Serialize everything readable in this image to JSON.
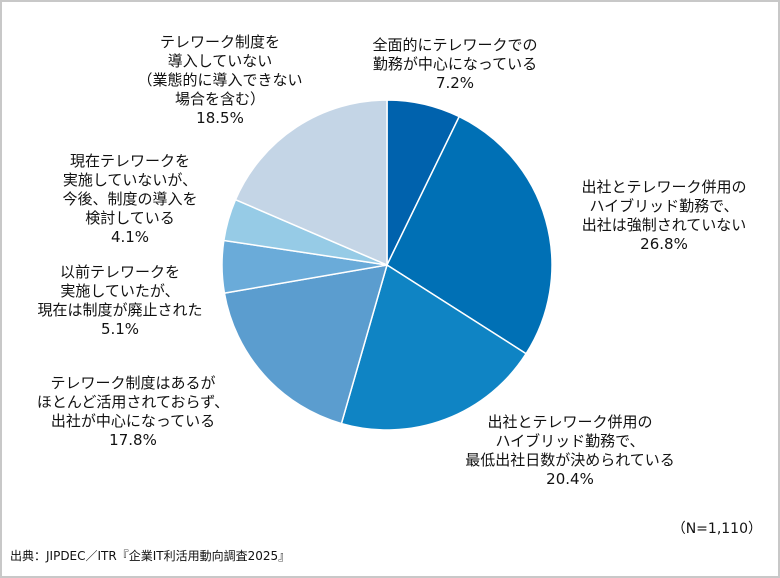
{
  "chart_data": {
    "type": "pie",
    "n_label": "（N=1,110）",
    "source": "出典：JIPDEC／ITR『企業IT利活用動向調査2025』",
    "slices": [
      {
        "label": "全面的にテレワークでの\n勤務が中心になっている",
        "value": 7.2,
        "value_label": "7.2%",
        "color": "#0062ad"
      },
      {
        "label": "出社とテレワーク併用の\nハイブリッド勤務で、\n出社は強制されていない",
        "value": 26.8,
        "value_label": "26.8%",
        "color": "#0070b5"
      },
      {
        "label": "出社とテレワーク併用の\nハイブリッド勤務で、\n最低出社日数が決められている",
        "value": 20.4,
        "value_label": "20.4%",
        "color": "#0f84c4"
      },
      {
        "label": "テレワーク制度はあるが\nほとんど活用されておらず、\n出社が中心になっている",
        "value": 17.8,
        "value_label": "17.8%",
        "color": "#5b9dcf"
      },
      {
        "label": "以前テレワークを\n実施していたが、\n現在は制度が廃止された",
        "value": 5.1,
        "value_label": "5.1%",
        "color": "#6aabd9"
      },
      {
        "label": "現在テレワークを\n実施していないが、\n今後、制度の導入を\n検討している",
        "value": 4.1,
        "value_label": "4.1%",
        "color": "#96cbe6"
      },
      {
        "label": "テレワーク制度を\n導入していない\n（業態的に導入できない\n場合を含む）",
        "value": 18.5,
        "value_label": "18.5%",
        "color": "#c4d5e6"
      }
    ]
  }
}
